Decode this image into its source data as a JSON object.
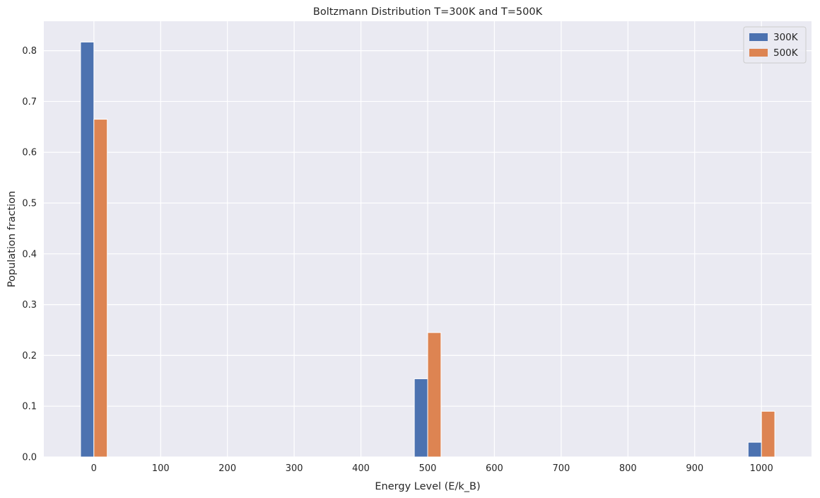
{
  "chart_data": {
    "type": "bar",
    "title": "Boltzmann Distribution T=300K and T=500K",
    "xlabel": "Energy Level (E/k_B)",
    "ylabel": "Population fraction",
    "x": [
      0,
      500,
      1000
    ],
    "bar_width": 20,
    "series": [
      {
        "name": "300K",
        "values": [
          0.817,
          0.154,
          0.029
        ],
        "color": "#4c72b0"
      },
      {
        "name": "500K",
        "values": [
          0.665,
          0.245,
          0.09
        ],
        "color": "#dd8452"
      }
    ],
    "xlim": [
      -75,
      1075
    ],
    "ylim": [
      0,
      0.858
    ],
    "xticks": [
      0,
      100,
      200,
      300,
      400,
      500,
      600,
      700,
      800,
      900,
      1000
    ],
    "yticks": [
      0.0,
      0.1,
      0.2,
      0.3,
      0.4,
      0.5,
      0.6,
      0.7,
      0.8
    ],
    "grid": true,
    "legend_position": "top-right",
    "background_color": "#eaeaf2",
    "grid_color": "#ffffff"
  }
}
